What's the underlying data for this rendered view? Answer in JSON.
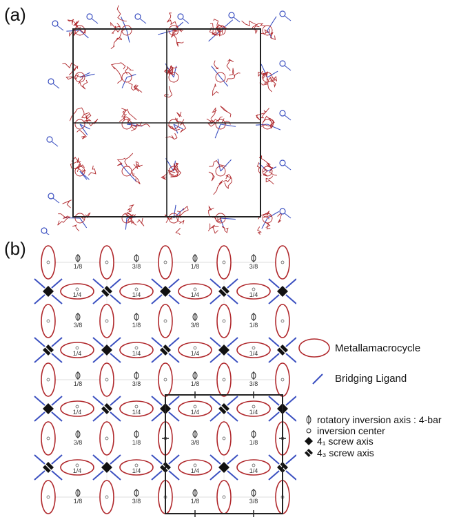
{
  "panel_a": {
    "label": "(a)"
  },
  "panel_b": {
    "label": "(b)",
    "fractions_row_odd": [
      "1/8",
      "3/8"
    ],
    "fractions_row_even": [
      "3/8",
      "1/8"
    ],
    "fraction_quarter": "1/4"
  },
  "legend": {
    "metallamacrocycle": "Metallamacrocycle",
    "bridging_ligand": "Bridging Ligand",
    "rotatory_inversion": "rotatory inversion axis : 4-bar",
    "inversion_center": "inversion center",
    "screw_41": "4₁ screw axis",
    "screw_43": "4₃ screw axis"
  },
  "colors": {
    "ring": "#b0282c",
    "ligand": "#3a4fc0",
    "cell": "#222222"
  }
}
